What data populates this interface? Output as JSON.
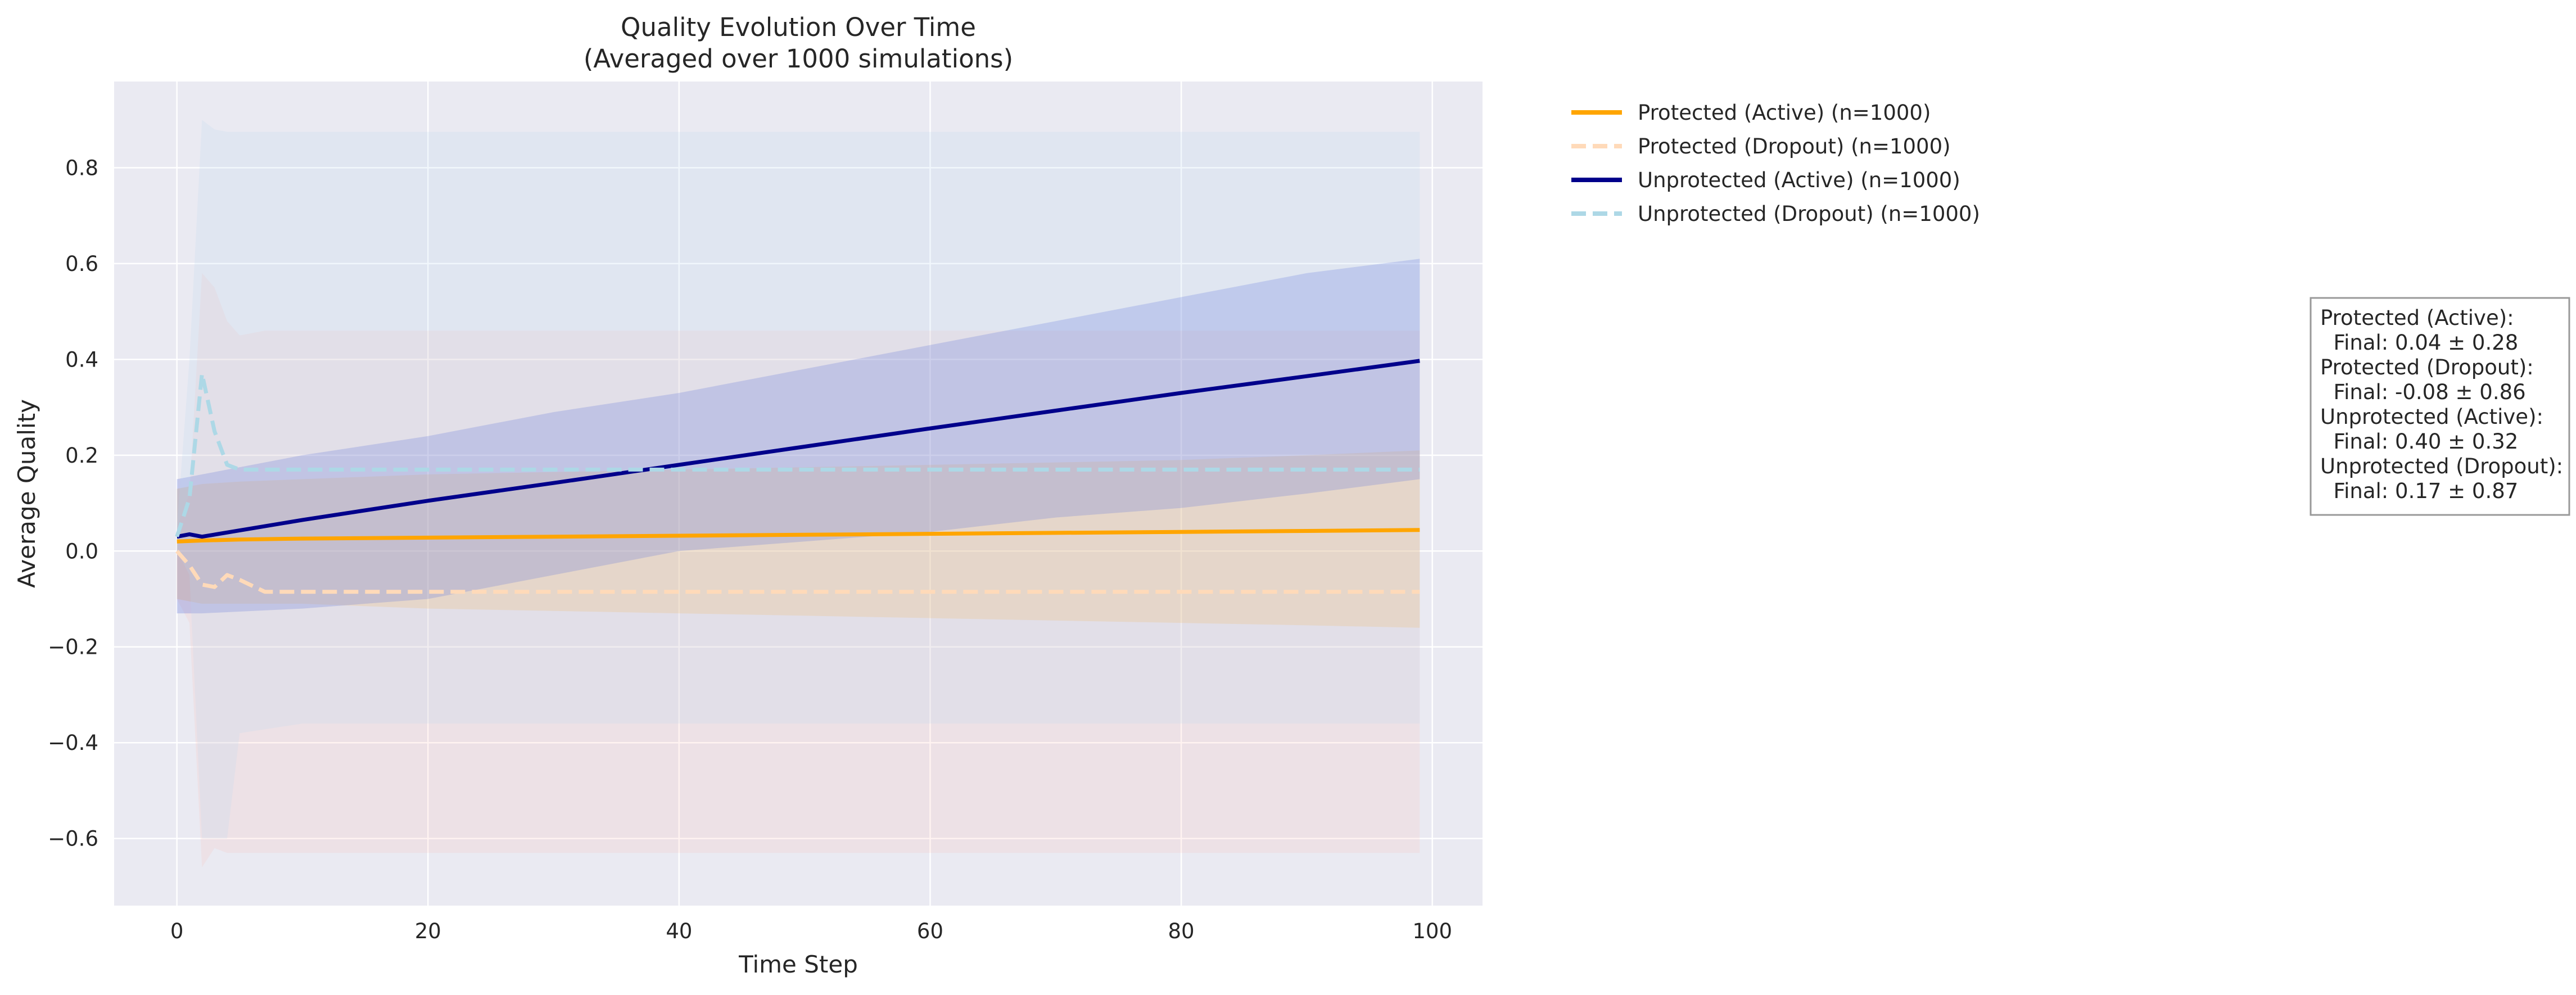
{
  "chart_data": {
    "type": "line",
    "title": "Quality Evolution Over Time",
    "subtitle": "(Averaged over 1000 simulations)",
    "xlabel": "Time Step",
    "ylabel": "Average Quality",
    "xlim": [
      -5,
      104
    ],
    "ylim": [
      -0.74,
      0.98
    ],
    "x_ticks": [
      0,
      20,
      40,
      60,
      80,
      100
    ],
    "y_ticks": [
      -0.6,
      -0.4,
      -0.2,
      0.0,
      0.2,
      0.4,
      0.6,
      0.8
    ],
    "x_tick_labels": [
      "0",
      "20",
      "40",
      "60",
      "80",
      "100"
    ],
    "y_tick_labels": [
      "−0.6",
      "−0.4",
      "−0.2",
      "0.0",
      "0.2",
      "0.4",
      "0.6",
      "0.8"
    ],
    "grid": true,
    "legend_position": "outside-top-right",
    "background_color": "#EAEAF2",
    "series": [
      {
        "name": "Protected (Active) (n=1000)",
        "color": "#FFA500",
        "style": "solid",
        "band_color": "#FFA500",
        "band_opacity": 0.18,
        "x": [
          0,
          2,
          5,
          10,
          20,
          30,
          40,
          50,
          60,
          70,
          80,
          90,
          99
        ],
        "y": [
          0.02,
          0.022,
          0.024,
          0.026,
          0.028,
          0.03,
          0.032,
          0.034,
          0.036,
          0.038,
          0.04,
          0.042,
          0.044
        ],
        "lower": [
          -0.1,
          -0.11,
          -0.11,
          -0.11,
          -0.12,
          -0.125,
          -0.13,
          -0.135,
          -0.14,
          -0.145,
          -0.15,
          -0.155,
          -0.16
        ],
        "upper": [
          0.13,
          0.14,
          0.145,
          0.15,
          0.16,
          0.165,
          0.17,
          0.175,
          0.18,
          0.185,
          0.19,
          0.2,
          0.21
        ]
      },
      {
        "name": "Protected (Dropout) (n=1000)",
        "color": "#FFDAB9",
        "style": "dashed",
        "band_color": "#FFB6A6",
        "band_opacity": 0.16,
        "x": [
          0,
          1,
          2,
          3,
          4,
          5,
          7,
          10,
          15,
          20,
          40,
          60,
          80,
          99
        ],
        "y": [
          0.0,
          -0.03,
          -0.07,
          -0.075,
          -0.05,
          -0.06,
          -0.085,
          -0.085,
          -0.085,
          -0.085,
          -0.085,
          -0.085,
          -0.085,
          -0.085
        ],
        "lower": [
          -0.1,
          -0.15,
          -0.66,
          -0.62,
          -0.63,
          -0.63,
          -0.63,
          -0.63,
          -0.63,
          -0.63,
          -0.63,
          -0.63,
          -0.63,
          -0.63
        ],
        "upper": [
          0.05,
          0.12,
          0.58,
          0.55,
          0.48,
          0.45,
          0.46,
          0.46,
          0.46,
          0.46,
          0.46,
          0.46,
          0.46,
          0.46
        ]
      },
      {
        "name": "Unprotected (Active) (n=1000)",
        "color": "#00008B",
        "style": "solid",
        "band_color": "#4A5ED8",
        "band_opacity": 0.25,
        "x": [
          0,
          1,
          2,
          10,
          20,
          30,
          40,
          50,
          60,
          70,
          80,
          90,
          99
        ],
        "y": [
          0.03,
          0.035,
          0.03,
          0.065,
          0.105,
          0.142,
          0.18,
          0.218,
          0.256,
          0.293,
          0.33,
          0.365,
          0.397
        ],
        "lower": [
          -0.13,
          -0.13,
          -0.13,
          -0.12,
          -0.1,
          -0.05,
          0.0,
          0.02,
          0.04,
          0.07,
          0.09,
          0.12,
          0.15
        ],
        "upper": [
          0.15,
          0.155,
          0.16,
          0.2,
          0.24,
          0.29,
          0.33,
          0.38,
          0.43,
          0.48,
          0.53,
          0.58,
          0.61
        ]
      },
      {
        "name": "Unprotected (Dropout) (n=1000)",
        "color": "#ADD8E6",
        "style": "dashed",
        "band_color": "#B7D8F0",
        "band_opacity": 0.2,
        "x": [
          0,
          1,
          2,
          3,
          4,
          5,
          10,
          20,
          40,
          60,
          80,
          99
        ],
        "y": [
          0.03,
          0.11,
          0.37,
          0.25,
          0.18,
          0.17,
          0.17,
          0.17,
          0.17,
          0.17,
          0.17,
          0.17
        ],
        "lower": [
          0.0,
          -0.05,
          -0.6,
          -0.6,
          -0.6,
          -0.38,
          -0.36,
          -0.36,
          -0.36,
          -0.36,
          -0.36,
          -0.36
        ],
        "upper": [
          0.05,
          0.4,
          0.9,
          0.88,
          0.875,
          0.875,
          0.875,
          0.875,
          0.875,
          0.875,
          0.875,
          0.875
        ]
      }
    ],
    "annotation": {
      "lines": [
        "Protected (Active):",
        "  Final: 0.04 ± 0.28",
        "Protected (Dropout):",
        "  Final: -0.08 ± 0.86",
        "Unprotected (Active):",
        "  Final: 0.40 ± 0.32",
        "Unprotected (Dropout):",
        "  Final: 0.17 ± 0.87"
      ]
    }
  }
}
